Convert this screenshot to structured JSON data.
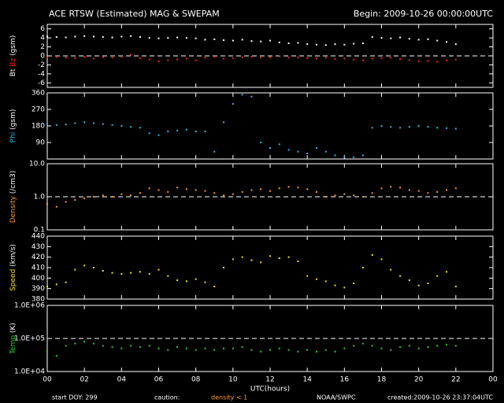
{
  "title": "ACE RTSW (Estimated) MAG & SWEPAM",
  "begin": "Begin: 2009-10-26 00:00:00UTC",
  "footer": {
    "doy": "start DOY: 299",
    "caution": "caution:",
    "density": "density < 1",
    "agency": "NOAA/SWPC",
    "created": "created:2009-10-26 23:37:04UTC"
  },
  "chart_data": [
    {
      "type": "scatter",
      "ylabel": "(gsm)",
      "ylim": [
        -7,
        7
      ],
      "yticks": [
        -6,
        -4,
        -2,
        0,
        2,
        4,
        6
      ],
      "reference_line": 0,
      "x": [
        0,
        0.5,
        1,
        1.5,
        2,
        2.5,
        3,
        3.5,
        4,
        4.5,
        5,
        5.5,
        6,
        6.5,
        7,
        7.5,
        8,
        8.5,
        9,
        9.5,
        10,
        10.5,
        11,
        11.5,
        12,
        12.5,
        13,
        13.5,
        14,
        14.5,
        15,
        15.5,
        16,
        16.5,
        17,
        17.5,
        18,
        18.5,
        19,
        19.5,
        20,
        20.5,
        21,
        21.5,
        22
      ],
      "series": [
        {
          "name": "Bt",
          "color": "#ffffff",
          "values": [
            4.3,
            4.2,
            4.1,
            4.3,
            4.4,
            4.3,
            4.2,
            4.1,
            4.3,
            4.4,
            4.2,
            4.0,
            3.9,
            4.0,
            4.1,
            4.0,
            3.9,
            3.6,
            3.7,
            3.5,
            3.4,
            3.6,
            3.3,
            3.2,
            3.4,
            3.0,
            2.8,
            2.9,
            2.6,
            2.5,
            2.4,
            2.6,
            2.5,
            2.7,
            2.8,
            4.2,
            4.0,
            3.9,
            4.1,
            3.8,
            3.6,
            3.7,
            3.4,
            3.1,
            2.6
          ]
        },
        {
          "name": "Bz",
          "color": "#ff2020",
          "values": [
            -0.3,
            -0.2,
            -0.4,
            -0.5,
            -0.2,
            -0.6,
            -0.3,
            -0.4,
            -0.2,
            0.3,
            -0.5,
            -0.8,
            -1.2,
            -1.0,
            -0.8,
            -0.6,
            -1.0,
            -0.4,
            -0.2,
            -0.6,
            -0.5,
            -0.3,
            -0.2,
            -0.4,
            -0.3,
            -0.1,
            -0.4,
            -0.3,
            -0.5,
            -0.6,
            -0.4,
            -0.7,
            -0.6,
            -0.8,
            -1.0,
            -0.6,
            -0.5,
            -0.4,
            -0.7,
            -0.9,
            -1.2,
            -1.1,
            -1.3,
            -1.0,
            -0.8
          ]
        }
      ]
    },
    {
      "type": "scatter",
      "ylabel": "(gsm)",
      "ylim": [
        0,
        360
      ],
      "yticks": [
        90,
        180,
        270,
        360
      ],
      "x": [
        0,
        0.5,
        1,
        1.5,
        2,
        2.5,
        3,
        3.5,
        4,
        4.5,
        5,
        5.5,
        6,
        6.5,
        7,
        7.5,
        8,
        8.5,
        9,
        9.5,
        10,
        10.5,
        11,
        11.5,
        12,
        12.5,
        13,
        13.5,
        14,
        14.5,
        15,
        15.5,
        16,
        16.5,
        17,
        17.5,
        18,
        18.5,
        19,
        19.5,
        20,
        20.5,
        21,
        21.5,
        22
      ],
      "series": [
        {
          "name": "Phi",
          "color": "#30b8e8",
          "values": [
            190,
            185,
            188,
            195,
            200,
            195,
            190,
            185,
            180,
            175,
            170,
            140,
            130,
            150,
            155,
            160,
            150,
            150,
            40,
            200,
            300,
            350,
            340,
            90,
            60,
            80,
            50,
            40,
            30,
            60,
            40,
            20,
            10,
            10,
            20,
            170,
            180,
            175,
            170,
            175,
            180,
            175,
            170,
            168,
            165
          ]
        }
      ]
    },
    {
      "type": "scatter",
      "ylabel": "(/cm3)",
      "log": true,
      "ylim": [
        0.1,
        10
      ],
      "yticks": [
        {
          "value": 0.1,
          "label": "0.1"
        },
        {
          "value": 1,
          "label": "1.0"
        },
        {
          "value": 10,
          "label": "10.0"
        }
      ],
      "reference_line": 1,
      "x": [
        0,
        0.5,
        1,
        1.5,
        2,
        2.5,
        3,
        3.5,
        4,
        4.5,
        5,
        5.5,
        6,
        6.5,
        7,
        7.5,
        8,
        8.5,
        9,
        9.5,
        10,
        10.5,
        11,
        11.5,
        12,
        12.5,
        13,
        13.5,
        14,
        14.5,
        15,
        15.5,
        16,
        16.5,
        17,
        17.5,
        18,
        18.5,
        19,
        19.5,
        20,
        20.5,
        21,
        21.5,
        22
      ],
      "series": [
        {
          "name": "Density",
          "color": "#ff9a30",
          "values": [
            0.6,
            0.5,
            0.7,
            0.8,
            0.9,
            1.0,
            1.1,
            1.0,
            1.2,
            1.1,
            1.3,
            1.8,
            1.6,
            1.4,
            1.9,
            1.7,
            1.6,
            1.5,
            1.3,
            1.1,
            1.2,
            1.4,
            1.6,
            1.7,
            1.5,
            1.8,
            2.0,
            1.9,
            1.7,
            1.4,
            1.0,
            1.1,
            1.2,
            1.1,
            1.0,
            1.3,
            1.8,
            2.0,
            1.9,
            1.6,
            1.5,
            1.3,
            1.4,
            1.6,
            1.8
          ]
        }
      ]
    },
    {
      "type": "scatter",
      "ylabel": "(km/s)",
      "ylim": [
        380,
        440
      ],
      "yticks": [
        380,
        390,
        400,
        410,
        420,
        430,
        440
      ],
      "x": [
        0,
        0.5,
        1,
        1.5,
        2,
        2.5,
        3,
        3.5,
        4,
        4.5,
        5,
        5.5,
        6,
        6.5,
        7,
        7.5,
        8,
        8.5,
        9,
        9.5,
        10,
        10.5,
        11,
        11.5,
        12,
        12.5,
        13,
        13.5,
        14,
        14.5,
        15,
        15.5,
        16,
        16.5,
        17,
        17.5,
        18,
        18.5,
        19,
        19.5,
        20,
        20.5,
        21,
        21.5,
        22
      ],
      "series": [
        {
          "name": "Speed",
          "color": "#f0e020",
          "values": [
            392,
            394,
            396,
            408,
            412,
            410,
            407,
            405,
            404,
            405,
            406,
            404,
            408,
            402,
            398,
            397,
            399,
            396,
            392,
            410,
            418,
            420,
            417,
            415,
            421,
            419,
            420,
            416,
            402,
            399,
            397,
            393,
            391,
            395,
            410,
            422,
            418,
            408,
            402,
            398,
            393,
            395,
            402,
            406,
            392
          ]
        }
      ]
    },
    {
      "type": "scatter",
      "ylabel": "(K)",
      "log": true,
      "ylim": [
        10000,
        1000000
      ],
      "yticks": [
        {
          "value": 10000,
          "label": "1.0E+04"
        },
        {
          "value": 100000,
          "label": "1.0E+05"
        },
        {
          "value": 1000000,
          "label": "1.0E+06"
        }
      ],
      "reference_line": 100000,
      "xlabel": "UTC(hours)",
      "xlim": [
        0,
        24
      ],
      "xticks": [
        {
          "value": 0,
          "label": "00"
        },
        {
          "value": 2,
          "label": "02"
        },
        {
          "value": 4,
          "label": "04"
        },
        {
          "value": 6,
          "label": "06"
        },
        {
          "value": 8,
          "label": "08"
        },
        {
          "value": 10,
          "label": "10"
        },
        12,
        14,
        16,
        18,
        20,
        22,
        {
          "value": 24,
          "label": "00"
        }
      ],
      "x": [
        0,
        0.5,
        1,
        1.5,
        2,
        2.5,
        3,
        3.5,
        4,
        4.5,
        5,
        5.5,
        6,
        6.5,
        7,
        7.5,
        8,
        8.5,
        9,
        9.5,
        10,
        10.5,
        11,
        11.5,
        12,
        12.5,
        13,
        13.5,
        14,
        14.5,
        15,
        15.5,
        16,
        16.5,
        17,
        17.5,
        18,
        18.5,
        19,
        19.5,
        20,
        20.5,
        21,
        21.5,
        22
      ],
      "series": [
        {
          "name": "Temp",
          "color": "#30d030",
          "values": [
            40000,
            30000,
            60000,
            70000,
            80000,
            70000,
            60000,
            55000,
            50000,
            60000,
            55000,
            60000,
            50000,
            45000,
            55000,
            50000,
            45000,
            50000,
            45000,
            50000,
            50000,
            55000,
            45000,
            40000,
            45000,
            50000,
            45000,
            40000,
            45000,
            40000,
            45000,
            40000,
            50000,
            60000,
            70000,
            60000,
            50000,
            45000,
            55000,
            60000,
            50000,
            55000,
            60000,
            65000,
            60000
          ]
        }
      ]
    }
  ]
}
